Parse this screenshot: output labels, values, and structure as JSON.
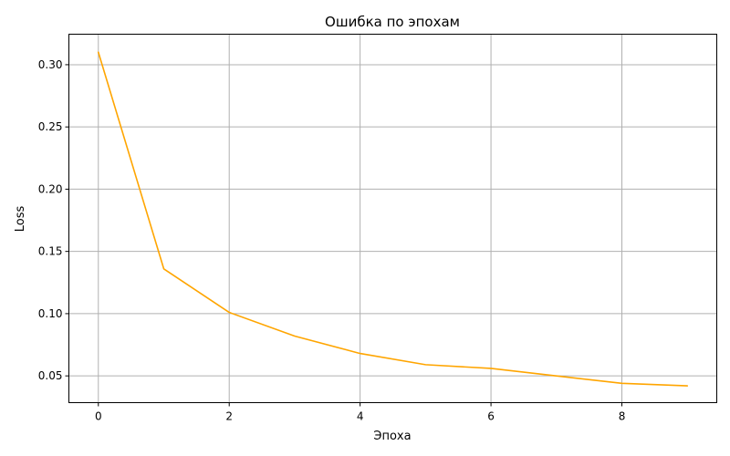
{
  "chart_data": {
    "type": "line",
    "title": "Ошибка по эпохам",
    "xlabel": "Эпоха",
    "ylabel": "Loss",
    "xlim": [
      -0.45,
      9.45
    ],
    "ylim": [
      0.0285,
      0.3245
    ],
    "xticks": [
      0,
      2,
      4,
      6,
      8
    ],
    "xtick_labels": [
      "0",
      "2",
      "4",
      "6",
      "8"
    ],
    "yticks": [
      0.05,
      0.1,
      0.15,
      0.2,
      0.25,
      0.3
    ],
    "ytick_labels": [
      "0.05",
      "0.10",
      "0.15",
      "0.20",
      "0.25",
      "0.30"
    ],
    "grid": true,
    "series": [
      {
        "color": "#ffa500",
        "x": [
          0,
          1,
          2,
          3,
          4,
          5,
          6,
          7,
          8,
          9
        ],
        "y": [
          0.31,
          0.136,
          0.101,
          0.082,
          0.068,
          0.059,
          0.056,
          0.05,
          0.044,
          0.042
        ]
      }
    ]
  }
}
